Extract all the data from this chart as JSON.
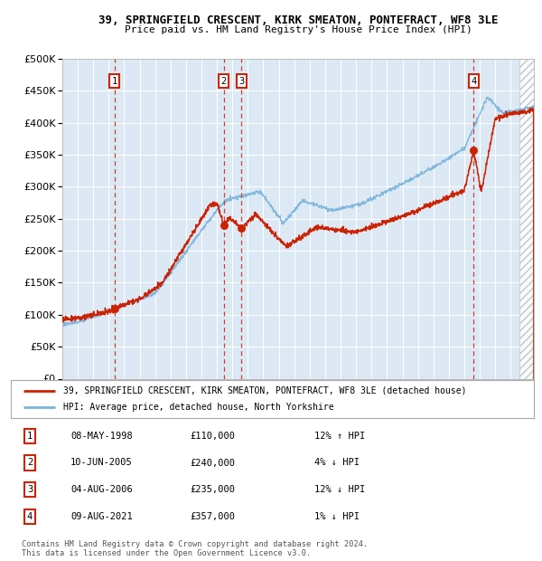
{
  "title": "39, SPRINGFIELD CRESCENT, KIRK SMEATON, PONTEFRACT, WF8 3LE",
  "subtitle": "Price paid vs. HM Land Registry's House Price Index (HPI)",
  "hpi_color": "#7ab3d9",
  "price_color": "#cc2200",
  "ylim": [
    0,
    500000
  ],
  "yticks": [
    0,
    50000,
    100000,
    150000,
    200000,
    250000,
    300000,
    350000,
    400000,
    450000,
    500000
  ],
  "xlim_start": 1995.0,
  "xlim_end": 2025.5,
  "hatch_start": 2024.58,
  "transactions": [
    {
      "id": 1,
      "date": "08-MAY-1998",
      "price": 110000,
      "pct": "12%",
      "dir": "↑",
      "x_year": 1998.36
    },
    {
      "id": 2,
      "date": "10-JUN-2005",
      "price": 240000,
      "pct": "4%",
      "dir": "↓",
      "x_year": 2005.44
    },
    {
      "id": 3,
      "date": "04-AUG-2006",
      "price": 235000,
      "pct": "12%",
      "dir": "↓",
      "x_year": 2006.59
    },
    {
      "id": 4,
      "date": "09-AUG-2021",
      "price": 357000,
      "pct": "1%",
      "dir": "↓",
      "x_year": 2021.61
    }
  ],
  "legend_label_price": "39, SPRINGFIELD CRESCENT, KIRK SMEATON, PONTEFRACT, WF8 3LE (detached house)",
  "legend_label_hpi": "HPI: Average price, detached house, North Yorkshire",
  "footer1": "Contains HM Land Registry data © Crown copyright and database right 2024.",
  "footer2": "This data is licensed under the Open Government Licence v3.0."
}
